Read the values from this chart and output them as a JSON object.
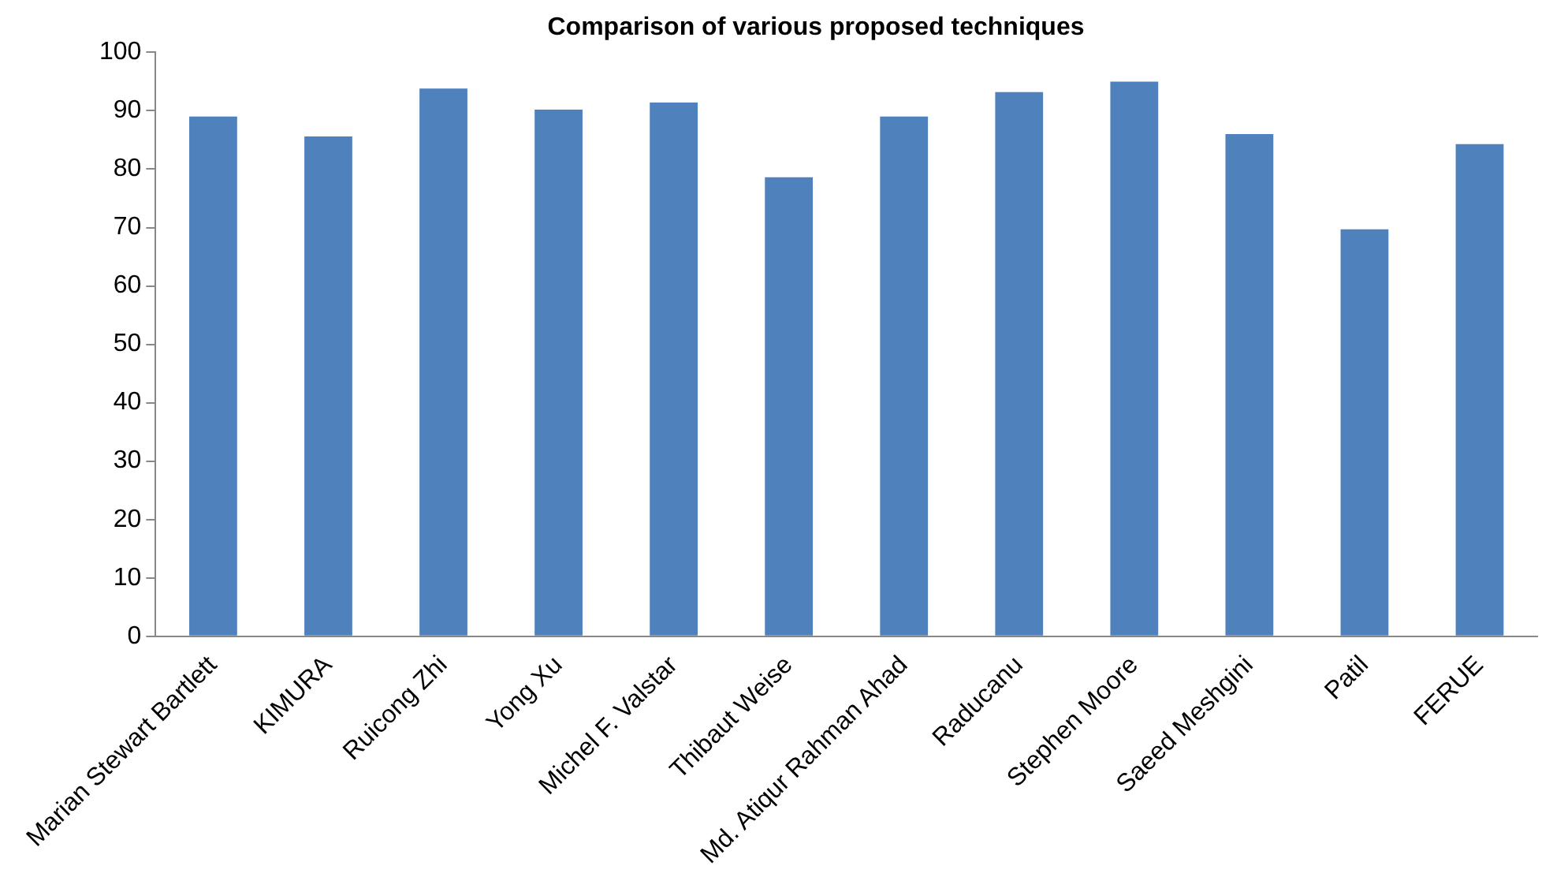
{
  "chart_data": {
    "type": "bar",
    "title": "Comparison of various proposed techniques",
    "categories": [
      "Marian Stewart Bartlett",
      "KIMURA",
      "Ruicong Zhi",
      "Yong Xu",
      "Michel F. Valstar",
      "Thibaut Weise",
      "Md. Atiqur Rahman Ahad",
      "Raducanu",
      "Stephen Moore",
      "Saeed Meshgini",
      "Patil",
      "FERUE"
    ],
    "values": [
      89,
      85.6,
      93.8,
      90.2,
      91.4,
      78.6,
      89,
      93.2,
      95,
      86,
      69.7,
      84.3
    ],
    "color": "#4f81bd",
    "ylim": [
      0,
      100
    ],
    "yticks": [
      0,
      10,
      20,
      30,
      40,
      50,
      60,
      70,
      80,
      90,
      100
    ],
    "grid": false,
    "legend": false
  }
}
